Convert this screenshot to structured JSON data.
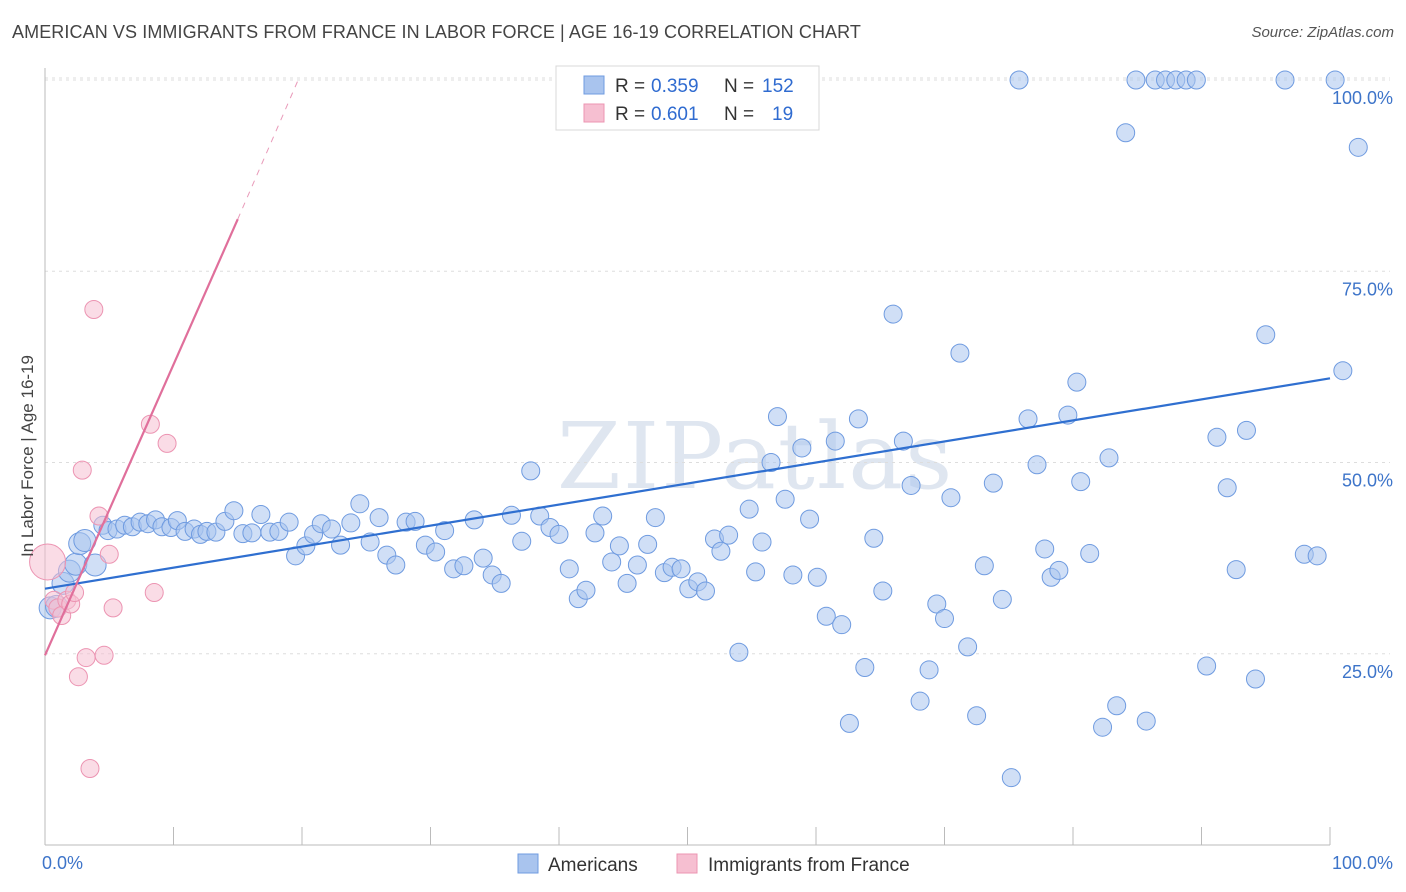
{
  "header": {
    "title": "AMERICAN VS IMMIGRANTS FROM FRANCE IN LABOR FORCE | AGE 16-19 CORRELATION CHART",
    "source": "Source: ZipAtlas.com"
  },
  "watermark": "ZIPatlas",
  "colors": {
    "americans_fill": "#a9c4ee",
    "americans_stroke": "#6f9be0",
    "americans_line": "#2f6fd0",
    "france_fill": "#f6bfd1",
    "france_stroke": "#ec94b2",
    "france_line": "#e06f9b",
    "grid": "#dddddd",
    "tick_text": "#3d74c9"
  },
  "chart_data": {
    "type": "scatter",
    "xlabel": "",
    "ylabel": "In Labor Force | Age 16-19",
    "xlim": [
      0,
      100
    ],
    "ylim": [
      0,
      100
    ],
    "x_tick_labels": [
      "0.0%",
      "100.0%"
    ],
    "y_tick_labels": [
      "25.0%",
      "50.0%",
      "75.0%",
      "100.0%"
    ],
    "y_ticks": [
      25,
      50,
      75,
      100
    ],
    "grid": "horizontal dashed",
    "legend_top": [
      {
        "r_label": "R = ",
        "r_value": "0.359",
        "n_label": "N = ",
        "n_value": "152"
      },
      {
        "r_label": "R = ",
        "r_value": "0.601",
        "n_label": "N = ",
        "n_value": "19"
      }
    ],
    "series": [
      {
        "name": "Americans",
        "trend": {
          "x0": 0,
          "y0": 33.5,
          "x1": 100,
          "y1": 61.0
        },
        "points": [
          [
            0.4,
            31.0
          ],
          [
            0.9,
            31.2
          ],
          [
            1.4,
            34.2
          ],
          [
            1.9,
            35.8
          ],
          [
            2.4,
            36.7
          ],
          [
            2.7,
            39.4
          ],
          [
            3.1,
            39.8
          ],
          [
            3.9,
            36.6
          ],
          [
            4.5,
            41.8
          ],
          [
            4.9,
            41.1
          ],
          [
            5.6,
            41.3
          ],
          [
            6.2,
            41.8
          ],
          [
            6.8,
            41.6
          ],
          [
            7.4,
            42.2
          ],
          [
            8.0,
            42.0
          ],
          [
            8.6,
            42.5
          ],
          [
            9.1,
            41.6
          ],
          [
            9.8,
            41.5
          ],
          [
            10.3,
            42.4
          ],
          [
            10.9,
            41.0
          ],
          [
            11.6,
            41.3
          ],
          [
            12.1,
            40.6
          ],
          [
            12.6,
            41.0
          ],
          [
            13.3,
            40.9
          ],
          [
            14.0,
            42.3
          ],
          [
            14.7,
            43.7
          ],
          [
            15.4,
            40.7
          ],
          [
            16.1,
            40.8
          ],
          [
            16.8,
            43.2
          ],
          [
            17.5,
            40.9
          ],
          [
            18.2,
            41.0
          ],
          [
            19.0,
            42.2
          ],
          [
            19.5,
            37.8
          ],
          [
            20.3,
            39.1
          ],
          [
            20.9,
            40.6
          ],
          [
            21.5,
            42.0
          ],
          [
            22.3,
            41.3
          ],
          [
            23.0,
            39.2
          ],
          [
            23.8,
            42.1
          ],
          [
            24.5,
            44.6
          ],
          [
            25.3,
            39.6
          ],
          [
            26.0,
            42.8
          ],
          [
            26.6,
            37.9
          ],
          [
            27.3,
            36.6
          ],
          [
            28.1,
            42.2
          ],
          [
            28.8,
            42.3
          ],
          [
            29.6,
            39.2
          ],
          [
            30.4,
            38.3
          ],
          [
            31.1,
            41.1
          ],
          [
            31.8,
            36.1
          ],
          [
            32.6,
            36.5
          ],
          [
            33.4,
            42.5
          ],
          [
            34.1,
            37.5
          ],
          [
            34.8,
            35.3
          ],
          [
            35.5,
            34.2
          ],
          [
            36.3,
            43.1
          ],
          [
            37.1,
            39.7
          ],
          [
            37.8,
            48.9
          ],
          [
            38.5,
            43.0
          ],
          [
            39.3,
            41.5
          ],
          [
            40.0,
            40.6
          ],
          [
            40.8,
            36.1
          ],
          [
            41.5,
            32.2
          ],
          [
            42.1,
            33.3
          ],
          [
            42.8,
            40.8
          ],
          [
            43.4,
            43.0
          ],
          [
            44.1,
            37.0
          ],
          [
            44.7,
            39.1
          ],
          [
            45.3,
            34.2
          ],
          [
            46.1,
            36.6
          ],
          [
            46.9,
            39.3
          ],
          [
            47.5,
            42.8
          ],
          [
            48.2,
            35.6
          ],
          [
            48.8,
            36.3
          ],
          [
            49.5,
            36.1
          ],
          [
            50.1,
            33.5
          ],
          [
            50.8,
            34.4
          ],
          [
            51.4,
            33.2
          ],
          [
            52.1,
            40.0
          ],
          [
            52.6,
            38.4
          ],
          [
            53.2,
            40.5
          ],
          [
            54.0,
            25.2
          ],
          [
            54.8,
            43.9
          ],
          [
            55.3,
            35.7
          ],
          [
            55.8,
            39.6
          ],
          [
            56.5,
            50.0
          ],
          [
            57.0,
            56.0
          ],
          [
            57.6,
            45.2
          ],
          [
            58.2,
            35.3
          ],
          [
            58.9,
            51.9
          ],
          [
            59.5,
            42.6
          ],
          [
            60.1,
            35.0
          ],
          [
            60.8,
            29.9
          ],
          [
            61.5,
            52.8
          ],
          [
            62.0,
            28.8
          ],
          [
            62.6,
            15.9
          ],
          [
            63.3,
            55.7
          ],
          [
            63.8,
            23.2
          ],
          [
            64.5,
            40.1
          ],
          [
            65.2,
            33.2
          ],
          [
            66.0,
            69.4
          ],
          [
            66.8,
            52.8
          ],
          [
            67.4,
            47.0
          ],
          [
            68.1,
            18.8
          ],
          [
            68.8,
            22.9
          ],
          [
            69.4,
            31.5
          ],
          [
            70.0,
            29.6
          ],
          [
            70.5,
            45.4
          ],
          [
            71.2,
            64.3
          ],
          [
            71.8,
            25.9
          ],
          [
            72.5,
            16.9
          ],
          [
            73.1,
            36.5
          ],
          [
            73.8,
            47.3
          ],
          [
            74.5,
            32.1
          ],
          [
            75.2,
            8.8
          ],
          [
            75.8,
            100.0
          ],
          [
            76.5,
            55.7
          ],
          [
            77.2,
            49.7
          ],
          [
            77.8,
            38.7
          ],
          [
            78.3,
            35.0
          ],
          [
            78.9,
            35.9
          ],
          [
            79.6,
            56.2
          ],
          [
            80.3,
            60.5
          ],
          [
            80.6,
            47.5
          ],
          [
            81.3,
            38.1
          ],
          [
            82.3,
            15.4
          ],
          [
            82.8,
            50.6
          ],
          [
            83.4,
            18.2
          ],
          [
            84.1,
            93.1
          ],
          [
            84.9,
            100.0
          ],
          [
            85.7,
            16.2
          ],
          [
            86.4,
            100.0
          ],
          [
            87.2,
            100.0
          ],
          [
            88.0,
            100.0
          ],
          [
            88.8,
            100.0
          ],
          [
            89.6,
            100.0
          ],
          [
            90.4,
            23.4
          ],
          [
            91.2,
            53.3
          ],
          [
            92.0,
            46.7
          ],
          [
            92.7,
            36.0
          ],
          [
            93.5,
            54.2
          ],
          [
            94.2,
            21.7
          ],
          [
            95.0,
            66.7
          ],
          [
            96.5,
            100.0
          ],
          [
            98.0,
            38.0
          ],
          [
            99.0,
            37.8
          ],
          [
            100.4,
            100.0
          ],
          [
            101.0,
            62.0
          ],
          [
            102.2,
            91.2
          ]
        ]
      },
      {
        "name": "Immigrants from France",
        "trend": {
          "x0": 0,
          "y0": 24.8,
          "x1": 15.0,
          "y1": 81.8
        },
        "trend_dashed": {
          "x0": 15.0,
          "y0": 81.8,
          "x1": 19.7,
          "y1": 100.0
        },
        "points": [
          [
            0.2,
            37.0
          ],
          [
            0.7,
            32.0
          ],
          [
            1.0,
            31.0
          ],
          [
            1.3,
            30.0
          ],
          [
            1.7,
            32.0
          ],
          [
            2.0,
            31.5
          ],
          [
            2.3,
            33.0
          ],
          [
            2.6,
            22.0
          ],
          [
            2.9,
            49.0
          ],
          [
            3.2,
            24.5
          ],
          [
            3.5,
            10.0
          ],
          [
            3.8,
            70.0
          ],
          [
            4.2,
            43.0
          ],
          [
            4.6,
            24.8
          ],
          [
            5.0,
            38.0
          ],
          [
            5.3,
            31.0
          ],
          [
            8.2,
            55.0
          ],
          [
            8.5,
            33.0
          ],
          [
            9.5,
            52.5
          ]
        ]
      }
    ],
    "legend_bottom": [
      "Americans",
      "Immigrants from France"
    ]
  }
}
